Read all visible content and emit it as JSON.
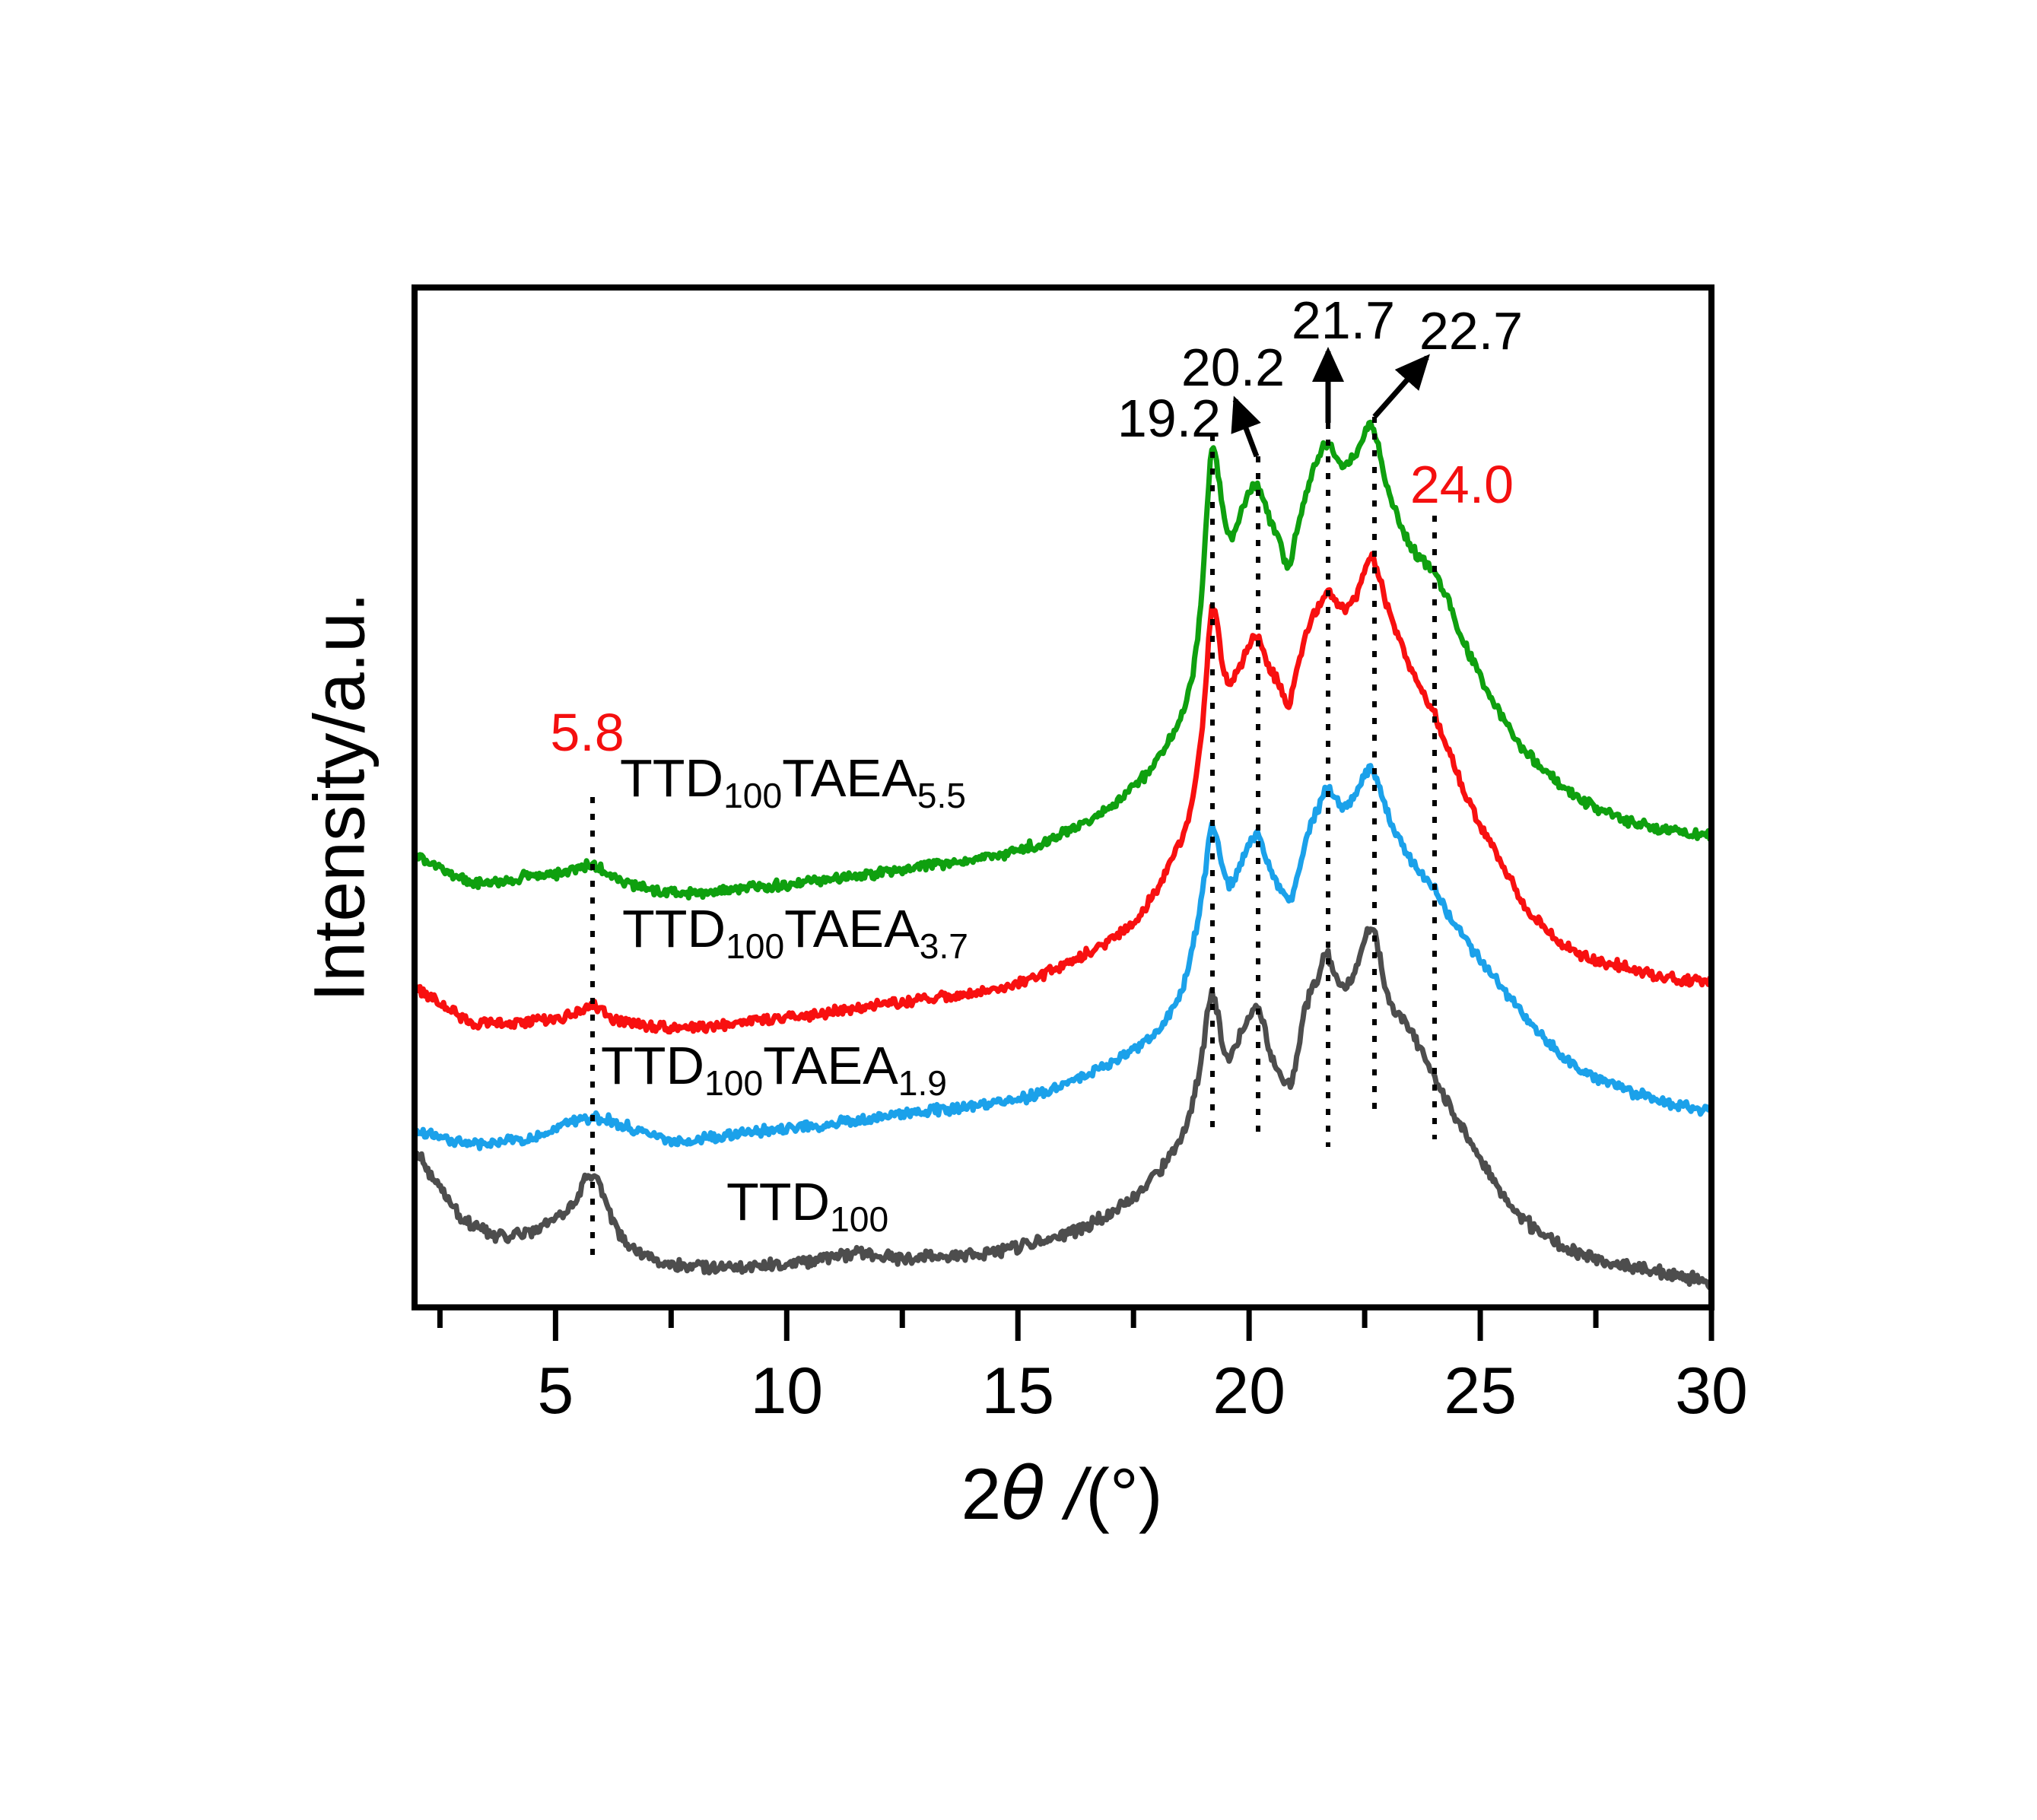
{
  "figure": {
    "background": "#ffffff",
    "frame_color": "#000000"
  },
  "axes": {
    "x": {
      "label_pre": "2",
      "label_theta": "θ",
      "label_slash": "/",
      "label_post": "(°)",
      "min": 2,
      "max": 30,
      "major_ticks": [
        5,
        10,
        15,
        20,
        25,
        30
      ],
      "minor_ticks": [
        2.5,
        7.5,
        12.5,
        17.5,
        22.5,
        27.5
      ]
    },
    "y": {
      "label": "Intensity/a.u."
    }
  },
  "series_labels": [
    {
      "m1": "TTD",
      "s1": "100",
      "m2": "TAEA",
      "s2": "5.5"
    },
    {
      "m1": "TTD",
      "s1": "100",
      "m2": "TAEA",
      "s2": "3.7"
    },
    {
      "m1": "TTD",
      "s1": "100",
      "m2": "TAEA",
      "s2": "1.9"
    },
    {
      "m1": "TTD",
      "s1": "100",
      "m2": "",
      "s2": ""
    }
  ],
  "chart_data": {
    "type": "line",
    "title": "",
    "xlabel": "2θ/(°)",
    "ylabel": "Intensity/a.u.",
    "x_range": [
      2,
      30
    ],
    "y_units": "arbitrary (intensity normalized 0-100 of plot height, curves vertically offset)",
    "grid": false,
    "legend_position": "none (labels placed beside curves)",
    "peak_annotations": [
      {
        "label": "5.8",
        "theta": 5.8,
        "color": "#f40f0f"
      },
      {
        "label": "19.2",
        "theta": 19.2,
        "color": "#000000"
      },
      {
        "label": "20.2",
        "theta": 20.2,
        "color": "#000000",
        "arrow": true
      },
      {
        "label": "21.7",
        "theta": 21.7,
        "color": "#000000",
        "arrow": true
      },
      {
        "label": "22.7",
        "theta": 22.7,
        "color": "#000000",
        "arrow": true
      },
      {
        "label": "24.0",
        "theta": 24.0,
        "color": "#f40f0f"
      }
    ],
    "series": [
      {
        "name": "TTD100TAEA5.5",
        "color": "#0fa00f",
        "anchors": [
          [
            2.0,
            44.3
          ],
          [
            3.2,
            41.7
          ],
          [
            4.5,
            42.3
          ],
          [
            5.2,
            42.6
          ],
          [
            5.8,
            43.3
          ],
          [
            6.5,
            41.7
          ],
          [
            7.6,
            40.6
          ],
          [
            8.5,
            40.8
          ],
          [
            10,
            41.5
          ],
          [
            12,
            42.6
          ],
          [
            14,
            43.9
          ],
          [
            15,
            44.8
          ],
          [
            16,
            46.5
          ],
          [
            17,
            49.0
          ],
          [
            17.6,
            51.4
          ],
          [
            18.0,
            53.6
          ],
          [
            18.5,
            57.7
          ],
          [
            18.8,
            62.6
          ],
          [
            19.0,
            71.5
          ],
          [
            19.2,
            84.3
          ],
          [
            19.45,
            77.5
          ],
          [
            19.6,
            75.6
          ],
          [
            19.8,
            77.5
          ],
          [
            20.0,
            79.7
          ],
          [
            20.2,
            80.5
          ],
          [
            20.45,
            77.1
          ],
          [
            20.65,
            75.2
          ],
          [
            20.85,
            72.6
          ],
          [
            21.0,
            75.6
          ],
          [
            21.2,
            79.0
          ],
          [
            21.5,
            83.4
          ],
          [
            21.7,
            84.7
          ],
          [
            22.0,
            82.7
          ],
          [
            22.3,
            83.7
          ],
          [
            22.65,
            86.4
          ],
          [
            23.0,
            80.1
          ],
          [
            23.5,
            74.6
          ],
          [
            24.0,
            72.1
          ],
          [
            24.3,
            69.3
          ],
          [
            24.8,
            63.7
          ],
          [
            25.5,
            57.7
          ],
          [
            26,
            54.4
          ],
          [
            27,
            50.3
          ],
          [
            28,
            48.0
          ],
          [
            29,
            46.8
          ],
          [
            30,
            46.2
          ]
        ]
      },
      {
        "name": "TTD100TAEA3.7",
        "color": "#f81010",
        "anchors": [
          [
            2.0,
            31.2
          ],
          [
            2.6,
            29.6
          ],
          [
            3.2,
            28.0
          ],
          [
            4.0,
            27.9
          ],
          [
            4.9,
            28.3
          ],
          [
            5.2,
            28.4
          ],
          [
            5.8,
            29.6
          ],
          [
            6.2,
            28.4
          ],
          [
            6.6,
            27.9
          ],
          [
            7.5,
            27.4
          ],
          [
            8.5,
            27.7
          ],
          [
            10,
            28.4
          ],
          [
            12,
            29.6
          ],
          [
            14,
            30.9
          ],
          [
            15,
            31.8
          ],
          [
            16,
            33.6
          ],
          [
            17,
            36.1
          ],
          [
            17.6,
            38.3
          ],
          [
            18.0,
            41.1
          ],
          [
            18.4,
            44.7
          ],
          [
            18.7,
            48.0
          ],
          [
            19.0,
            57.3
          ],
          [
            19.2,
            68.5
          ],
          [
            19.45,
            62.6
          ],
          [
            19.6,
            61.1
          ],
          [
            19.8,
            62.9
          ],
          [
            20.0,
            64.8
          ],
          [
            20.2,
            65.7
          ],
          [
            20.45,
            62.6
          ],
          [
            20.65,
            61.1
          ],
          [
            20.85,
            59.2
          ],
          [
            21.0,
            61.8
          ],
          [
            21.2,
            65.5
          ],
          [
            21.5,
            68.9
          ],
          [
            21.7,
            70.0
          ],
          [
            22.0,
            68.5
          ],
          [
            22.3,
            69.4
          ],
          [
            22.65,
            73.4
          ],
          [
            23.0,
            68.5
          ],
          [
            23.5,
            62.6
          ],
          [
            24.0,
            58.2
          ],
          [
            24.3,
            54.7
          ],
          [
            24.8,
            49.1
          ],
          [
            25.5,
            43.2
          ],
          [
            26,
            39.1
          ],
          [
            27,
            35.1
          ],
          [
            28,
            33.5
          ],
          [
            29,
            32.4
          ],
          [
            30,
            31.8
          ]
        ]
      },
      {
        "name": "TTD100TAEA1.9",
        "color": "#1ba1ea",
        "anchors": [
          [
            2.0,
            17.3
          ],
          [
            3.2,
            16.1
          ],
          [
            4.5,
            16.7
          ],
          [
            5.8,
            18.6
          ],
          [
            7.5,
            16.3
          ],
          [
            9,
            17.1
          ],
          [
            11,
            18.0
          ],
          [
            13,
            19.2
          ],
          [
            14,
            19.7
          ],
          [
            15,
            20.4
          ],
          [
            16,
            21.9
          ],
          [
            17,
            23.9
          ],
          [
            18,
            27.1
          ],
          [
            18.5,
            30.5
          ],
          [
            18.8,
            35.7
          ],
          [
            19.0,
            40.9
          ],
          [
            19.2,
            47.1
          ],
          [
            19.45,
            42.4
          ],
          [
            19.6,
            41.5
          ],
          [
            19.8,
            43.2
          ],
          [
            20.0,
            45.4
          ],
          [
            20.2,
            46.2
          ],
          [
            20.5,
            42.4
          ],
          [
            20.9,
            40.2
          ],
          [
            21.2,
            45.4
          ],
          [
            21.5,
            49.1
          ],
          [
            21.7,
            50.9
          ],
          [
            22.0,
            49.1
          ],
          [
            22.3,
            50.3
          ],
          [
            22.65,
            52.7
          ],
          [
            23.0,
            48.4
          ],
          [
            23.5,
            43.9
          ],
          [
            24.0,
            41.1
          ],
          [
            24.3,
            38.7
          ],
          [
            24.8,
            35.3
          ],
          [
            25.5,
            31.2
          ],
          [
            26,
            28.3
          ],
          [
            27,
            23.9
          ],
          [
            28,
            21.6
          ],
          [
            29,
            20.1
          ],
          [
            30,
            19.2
          ]
        ]
      },
      {
        "name": "TTD100",
        "color": "#4d4d4d",
        "anchors": [
          [
            2.0,
            15.1
          ],
          [
            2.5,
            11.9
          ],
          [
            3.0,
            8.7
          ],
          [
            3.8,
            7.0
          ],
          [
            4.5,
            7.5
          ],
          [
            5.0,
            8.7
          ],
          [
            5.4,
            10.2
          ],
          [
            5.8,
            13.1
          ],
          [
            6.2,
            8.9
          ],
          [
            6.6,
            6.0
          ],
          [
            7.2,
            4.6
          ],
          [
            8.0,
            4.0
          ],
          [
            9.0,
            3.9
          ],
          [
            10,
            4.3
          ],
          [
            11.5,
            5.3
          ],
          [
            12.5,
            4.9
          ],
          [
            14,
            5.3
          ],
          [
            15,
            5.9
          ],
          [
            16,
            7.2
          ],
          [
            17,
            9.2
          ],
          [
            17.6,
            11.1
          ],
          [
            18.0,
            13.0
          ],
          [
            18.4,
            15.6
          ],
          [
            18.7,
            18.6
          ],
          [
            19.0,
            25.3
          ],
          [
            19.2,
            30.9
          ],
          [
            19.45,
            25.4
          ],
          [
            19.6,
            24.5
          ],
          [
            19.8,
            26.8
          ],
          [
            20.0,
            28.6
          ],
          [
            20.2,
            29.2
          ],
          [
            20.5,
            24.5
          ],
          [
            20.9,
            22.1
          ],
          [
            21.2,
            29.0
          ],
          [
            21.5,
            32.7
          ],
          [
            21.7,
            34.5
          ],
          [
            22.0,
            31.2
          ],
          [
            22.3,
            33.1
          ],
          [
            22.65,
            37.2
          ],
          [
            23.0,
            30.5
          ],
          [
            23.4,
            27.9
          ],
          [
            23.8,
            24.5
          ],
          [
            24.2,
            20.8
          ],
          [
            24.8,
            16.0
          ],
          [
            25.5,
            11.1
          ],
          [
            26,
            8.4
          ],
          [
            27,
            5.5
          ],
          [
            28,
            4.4
          ],
          [
            29,
            3.3
          ],
          [
            30,
            2.5
          ]
        ]
      }
    ]
  }
}
